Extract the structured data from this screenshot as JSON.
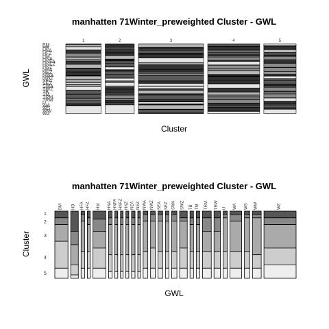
{
  "chart_data": [
    {
      "type": "mosaic",
      "title": "manhatten 71Winter_preweighted Cluster - GWL",
      "xlabel": "Cluster",
      "ylabel": "GWL",
      "clusters": [
        "1",
        "2",
        "3",
        "4",
        "5"
      ],
      "cluster_widths": [
        0.165,
        0.136,
        0.305,
        0.243,
        0.151
      ],
      "gwl_labels": [
        "BM",
        "HB",
        "HFA",
        "HFZ",
        "HM",
        "HNA",
        "HNFA",
        "HNFZ",
        "HNZ",
        "NEA",
        "NEZ",
        "NWA",
        "NWZ",
        "SEA",
        "SEZ",
        "SWA",
        "SWZ",
        "TB",
        "TM",
        "TRM",
        "TRW",
        "U",
        "WA",
        "WS",
        "WW",
        "WZ"
      ],
      "visible_gwl_labels": [
        "BM",
        "HB",
        "HFA",
        "HFZ",
        "HM",
        "HNA",
        "HNFA",
        "HNFZ",
        "HNZ",
        "NEA",
        "NEZ",
        "NWA",
        "NWZ",
        "SEA",
        "SEZ",
        "SWA",
        "SWZ",
        "TB",
        "TM",
        "TRM",
        "TRW",
        "U",
        "WA",
        "WS",
        "WW",
        "WZ"
      ],
      "fill_levels": [
        "#333333",
        "#5a5a5a",
        "#8a8a8a",
        "#b8b8b8",
        "#e6e6e6"
      ]
    },
    {
      "type": "mosaic",
      "title": "manhatten 71Winter_preweighted Cluster - GWL",
      "xlabel": "GWL",
      "ylabel": "Cluster",
      "y_ticks": [
        "1",
        "2",
        "3",
        "4",
        "5"
      ],
      "gwl_columns": [
        {
          "label": "BM",
          "width": 0.045,
          "dist": [
            0.1,
            0.1,
            0.25,
            0.4,
            0.15
          ]
        },
        {
          "label": "HB",
          "width": 0.026,
          "dist": [
            0.3,
            0.2,
            0.3,
            0.15,
            0.05
          ]
        },
        {
          "label": "HFA",
          "width": 0.012,
          "dist": [
            0.05,
            0.1,
            0.45,
            0.25,
            0.15
          ]
        },
        {
          "label": "HFZ",
          "width": 0.01,
          "dist": [
            0.1,
            0.1,
            0.4,
            0.25,
            0.15
          ]
        },
        {
          "label": "HM",
          "width": 0.044,
          "dist": [
            0.12,
            0.18,
            0.25,
            0.3,
            0.15
          ]
        },
        {
          "label": "HNA",
          "width": 0.012,
          "dist": [
            0.1,
            0.1,
            0.45,
            0.25,
            0.1
          ]
        },
        {
          "label": "HNFA",
          "width": 0.01,
          "dist": [
            0.1,
            0.1,
            0.45,
            0.25,
            0.1
          ]
        },
        {
          "label": "HNFZ",
          "width": 0.009,
          "dist": [
            0.1,
            0.1,
            0.45,
            0.25,
            0.1
          ]
        },
        {
          "label": "HNZ",
          "width": 0.01,
          "dist": [
            0.1,
            0.1,
            0.45,
            0.25,
            0.1
          ]
        },
        {
          "label": "NEA",
          "width": 0.012,
          "dist": [
            0.1,
            0.1,
            0.45,
            0.25,
            0.1
          ]
        },
        {
          "label": "NEZ",
          "width": 0.009,
          "dist": [
            0.1,
            0.1,
            0.45,
            0.25,
            0.1
          ]
        },
        {
          "label": "NWA",
          "width": 0.016,
          "dist": [
            0.05,
            0.1,
            0.45,
            0.25,
            0.15
          ]
        },
        {
          "label": "NWZ",
          "width": 0.016,
          "dist": [
            0.05,
            0.1,
            0.4,
            0.3,
            0.15
          ]
        },
        {
          "label": "SEA",
          "width": 0.016,
          "dist": [
            0.05,
            0.1,
            0.45,
            0.25,
            0.15
          ]
        },
        {
          "label": "SEZ",
          "width": 0.012,
          "dist": [
            0.05,
            0.1,
            0.45,
            0.25,
            0.15
          ]
        },
        {
          "label": "SWA",
          "width": 0.018,
          "dist": [
            0.05,
            0.1,
            0.45,
            0.25,
            0.15
          ]
        },
        {
          "label": "SWZ",
          "width": 0.026,
          "dist": [
            0.1,
            0.05,
            0.4,
            0.3,
            0.15
          ]
        },
        {
          "label": "TB",
          "width": 0.012,
          "dist": [
            0.1,
            0.1,
            0.4,
            0.25,
            0.15
          ]
        },
        {
          "label": "TM",
          "width": 0.012,
          "dist": [
            0.1,
            0.1,
            0.4,
            0.25,
            0.15
          ]
        },
        {
          "label": "TRM",
          "width": 0.03,
          "dist": [
            0.1,
            0.2,
            0.3,
            0.25,
            0.15
          ]
        },
        {
          "label": "TRW",
          "width": 0.022,
          "dist": [
            0.1,
            0.2,
            0.3,
            0.25,
            0.15
          ]
        },
        {
          "label": "U",
          "width": 0.014,
          "dist": [
            0.05,
            0.05,
            0.5,
            0.25,
            0.15
          ]
        },
        {
          "label": "WA",
          "width": 0.04,
          "dist": [
            0.05,
            0.1,
            0.45,
            0.25,
            0.15
          ]
        },
        {
          "label": "WS",
          "width": 0.018,
          "dist": [
            0.05,
            0.05,
            0.5,
            0.25,
            0.15
          ]
        },
        {
          "label": "WW",
          "width": 0.03,
          "dist": [
            0.05,
            0.05,
            0.55,
            0.2,
            0.15
          ]
        },
        {
          "label": "WZ",
          "width": 0.11,
          "dist": [
            0.1,
            0.1,
            0.35,
            0.25,
            0.2
          ]
        }
      ],
      "fill_levels": [
        "#555555",
        "#888888",
        "#aaaaaa",
        "#cccccc",
        "#eeeeee"
      ]
    }
  ]
}
